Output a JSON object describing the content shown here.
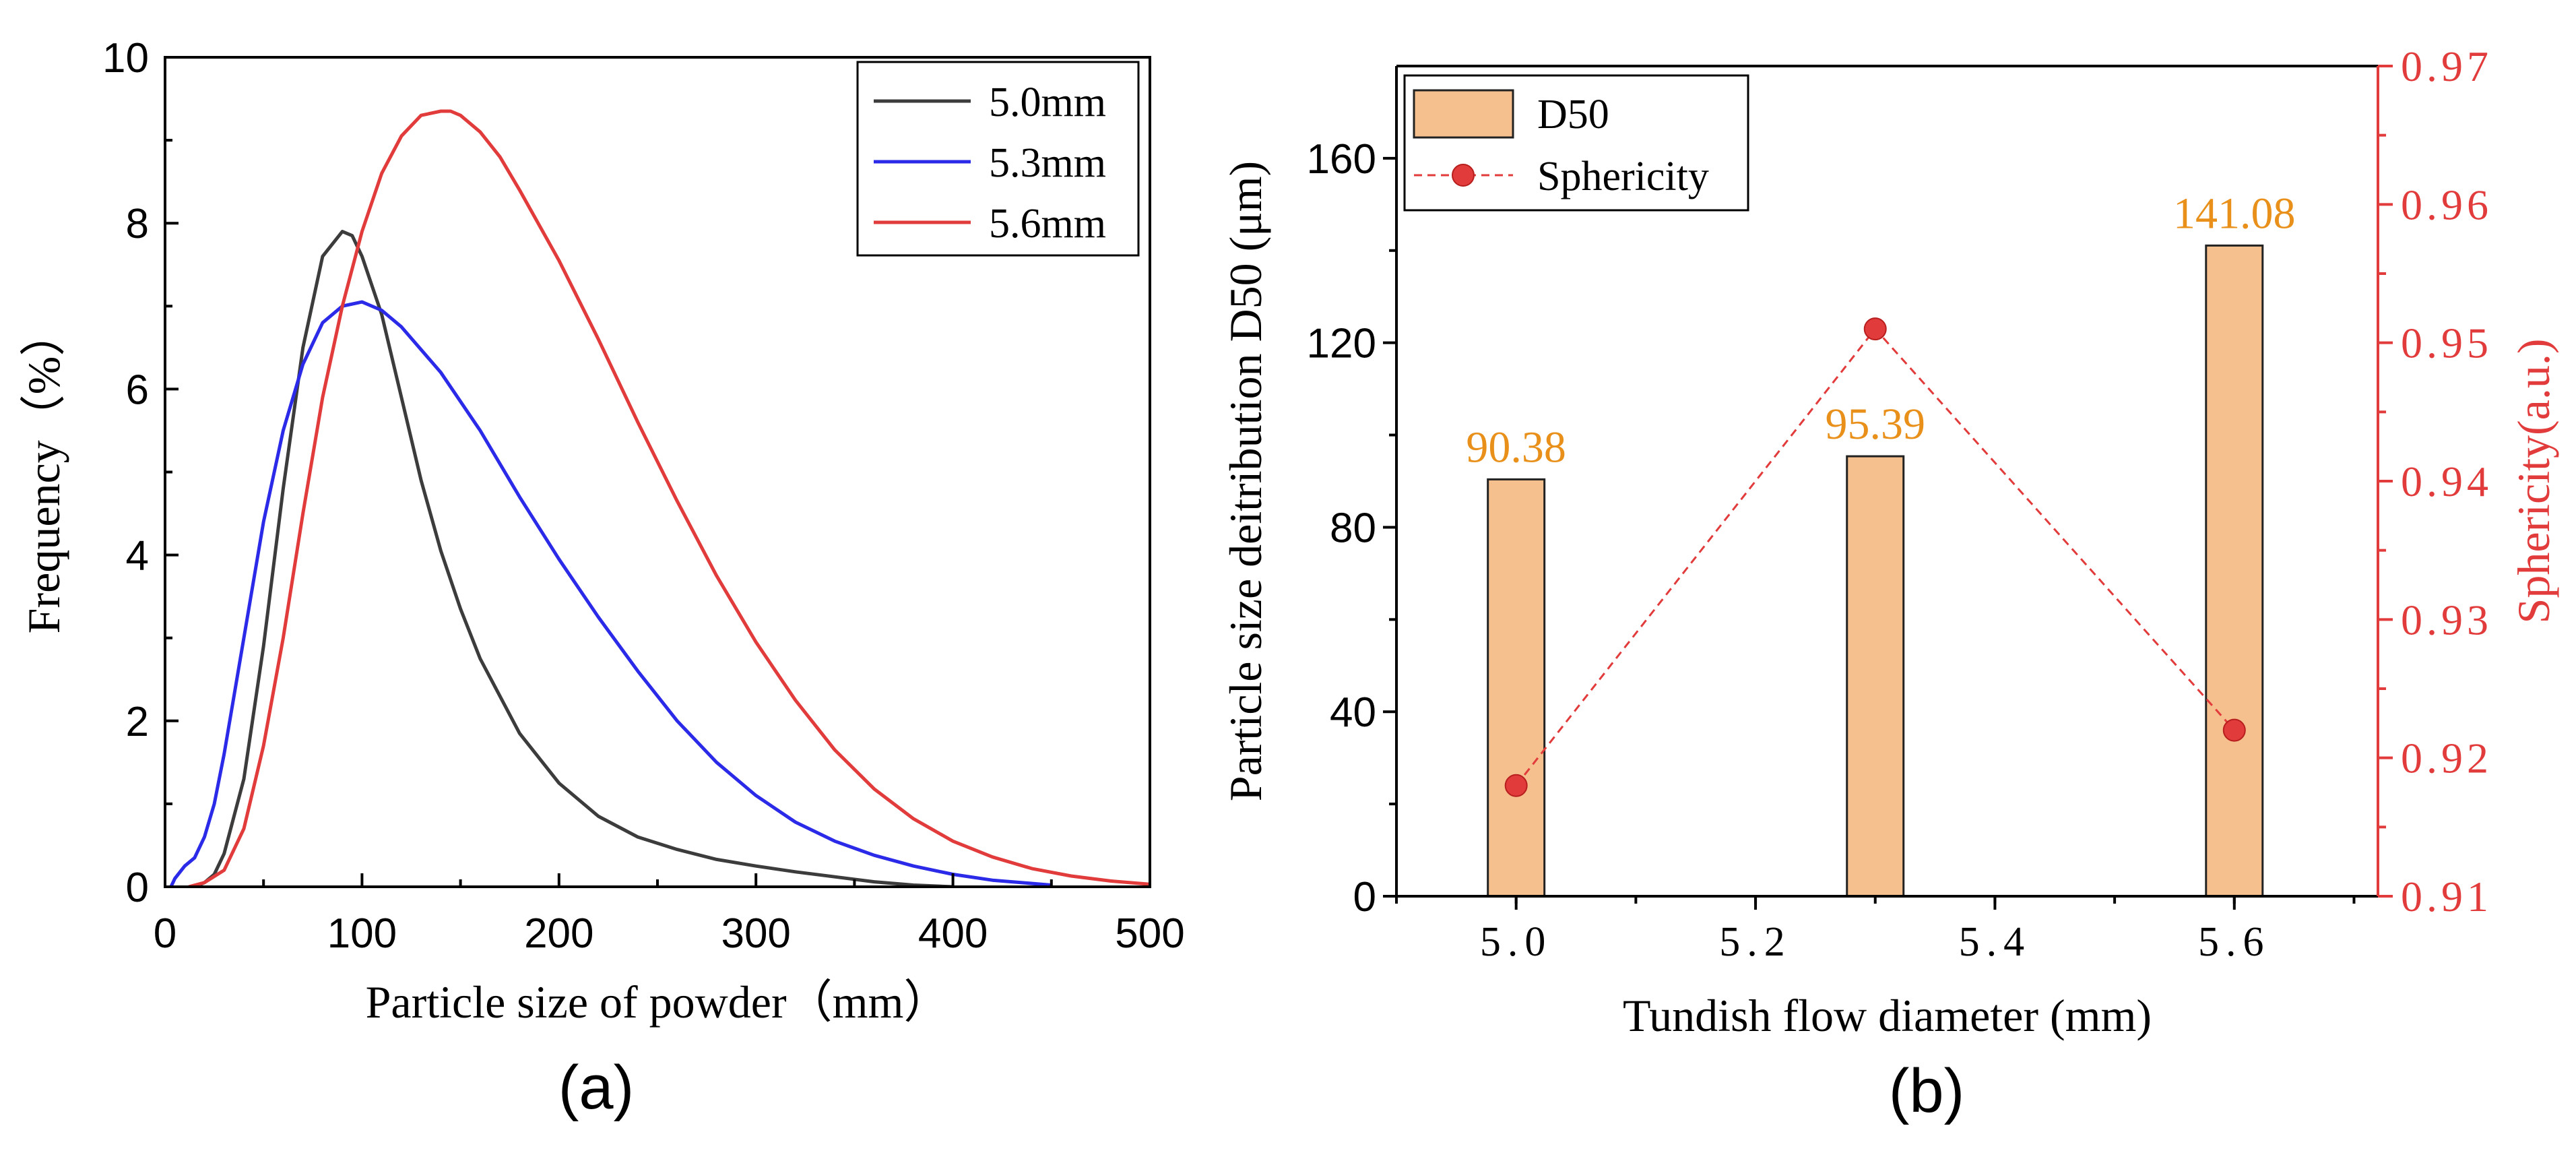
{
  "chart_data": [
    {
      "type": "line",
      "panel_label": "(a)",
      "xlabel": "Particle size of powder（mm）",
      "ylabel": "Frequency（%）",
      "xlim": [
        0,
        500
      ],
      "ylim": [
        0,
        10
      ],
      "xticks": [
        0,
        100,
        200,
        300,
        400,
        500
      ],
      "yticks": [
        0,
        2,
        4,
        6,
        8,
        10
      ],
      "grid": false,
      "legend_position": "top-right",
      "series": [
        {
          "name": "5.0mm",
          "color": "#3c3c3c",
          "x": [
            15,
            20,
            25,
            30,
            40,
            50,
            60,
            70,
            80,
            90,
            95,
            100,
            110,
            120,
            130,
            140,
            150,
            160,
            180,
            200,
            220,
            240,
            260,
            280,
            300,
            320,
            340,
            360,
            380,
            400
          ],
          "y": [
            0.0,
            0.05,
            0.15,
            0.4,
            1.3,
            2.9,
            4.8,
            6.5,
            7.6,
            7.9,
            7.85,
            7.6,
            6.9,
            5.9,
            4.9,
            4.05,
            3.35,
            2.75,
            1.85,
            1.25,
            0.85,
            0.6,
            0.45,
            0.33,
            0.25,
            0.18,
            0.12,
            0.06,
            0.02,
            0.0
          ]
        },
        {
          "name": "5.3mm",
          "color": "#2a2ae8",
          "x": [
            3,
            5,
            10,
            15,
            20,
            25,
            30,
            40,
            50,
            60,
            70,
            80,
            90,
            100,
            110,
            120,
            140,
            160,
            180,
            200,
            220,
            240,
            260,
            280,
            300,
            320,
            340,
            360,
            380,
            400,
            420,
            450
          ],
          "y": [
            0.0,
            0.1,
            0.25,
            0.35,
            0.6,
            1.0,
            1.6,
            3.0,
            4.4,
            5.5,
            6.3,
            6.8,
            7.0,
            7.05,
            6.95,
            6.75,
            6.2,
            5.5,
            4.7,
            3.95,
            3.25,
            2.6,
            2.0,
            1.5,
            1.1,
            0.78,
            0.55,
            0.38,
            0.25,
            0.15,
            0.08,
            0.02
          ]
        },
        {
          "name": "5.6mm",
          "color": "#e23b3b",
          "x": [
            12,
            20,
            30,
            40,
            50,
            60,
            70,
            80,
            90,
            100,
            110,
            120,
            130,
            140,
            145,
            150,
            160,
            170,
            180,
            200,
            220,
            240,
            260,
            280,
            300,
            320,
            340,
            360,
            380,
            400,
            420,
            440,
            460,
            480,
            500
          ],
          "y": [
            0.0,
            0.05,
            0.2,
            0.7,
            1.7,
            3.0,
            4.5,
            5.9,
            7.0,
            7.9,
            8.6,
            9.05,
            9.3,
            9.35,
            9.35,
            9.3,
            9.1,
            8.8,
            8.4,
            7.55,
            6.6,
            5.6,
            4.65,
            3.75,
            2.95,
            2.25,
            1.65,
            1.18,
            0.82,
            0.55,
            0.36,
            0.22,
            0.13,
            0.07,
            0.03
          ]
        }
      ]
    },
    {
      "type": "bar",
      "panel_label": "(b)",
      "xlabel": "Tundish flow diameter (mm)",
      "ylabel": "Particle size deitribution D50 (μm)",
      "y2label": "Sphericity(a.u.)",
      "xlim": [
        4.9,
        5.72
      ],
      "ylim": [
        0,
        180
      ],
      "y2lim": [
        0.91,
        0.97
      ],
      "xticks": [
        "5.0",
        "5.2",
        "5.4",
        "5.6"
      ],
      "yticks": [
        0,
        40,
        80,
        120,
        160
      ],
      "y2ticks": [
        "0.91",
        "0.92",
        "0.93",
        "0.94",
        "0.95",
        "0.96",
        "0.97"
      ],
      "grid": false,
      "legend_position": "top-left",
      "series": [
        {
          "name": "D50",
          "type": "bar",
          "color": "#f6bf8e",
          "x": [
            5.0,
            5.3,
            5.6
          ],
          "values": [
            90.38,
            95.39,
            141.08
          ],
          "labels": [
            "90.38",
            "95.39",
            "141.08"
          ],
          "label_color": "#e8901a"
        },
        {
          "name": "Sphericity",
          "type": "scatter-line",
          "axis": "right",
          "color": "#e23b3b",
          "x": [
            5.0,
            5.3,
            5.6
          ],
          "values": [
            0.918,
            0.951,
            0.922
          ]
        }
      ]
    }
  ]
}
